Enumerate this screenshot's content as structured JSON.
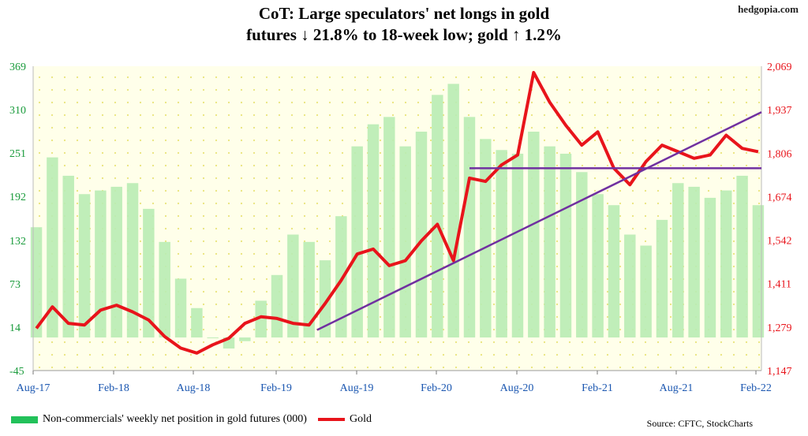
{
  "header": {
    "title_line1": "CoT: Large speculators' net longs in gold",
    "title_line2": "futures ↓ 21.8% to 18-week low; gold ↑ 1.2%",
    "site": "hedgopia.com"
  },
  "footer": {
    "source": "Source: CFTC, StockCharts"
  },
  "colors": {
    "bars": "#b9ecb4",
    "gold_line": "#e8141b",
    "trend_line": "#7030a0",
    "left_axis": "#1a9b3c",
    "right_axis": "#e8141b",
    "plot_bg": "#ffffea",
    "dots": "#e9e47a"
  },
  "chart_data": {
    "type": "bar+line",
    "title": "CoT: Large speculators' net longs in gold futures ↓ 21.8% to 18-week low; gold ↑ 1.2%",
    "x_tick_labels": [
      "Aug-17",
      "Feb-18",
      "Aug-18",
      "Feb-19",
      "Aug-19",
      "Feb-20",
      "Aug-20",
      "Feb-21",
      "Aug-21",
      "Feb-22"
    ],
    "x_range": [
      "Aug-17",
      "Feb-22"
    ],
    "left_axis": {
      "ticks": [
        -45,
        14,
        73,
        132,
        192,
        251,
        310,
        369
      ],
      "ylim": [
        -45,
        369
      ]
    },
    "right_axis": {
      "ticks": [
        "1,147",
        "1,279",
        "1,411",
        "1,542",
        "1,674",
        "1,806",
        "1,937",
        "2,069"
      ],
      "ylim": [
        1147,
        2069
      ]
    },
    "grid": "dotted",
    "series": [
      {
        "name": "Non-commercials' weekly net position in gold futures (000)",
        "type": "bar",
        "axis": "left",
        "x": [
          2017.6,
          2017.7,
          2017.8,
          2017.9,
          2018.0,
          2018.1,
          2018.2,
          2018.3,
          2018.4,
          2018.5,
          2018.6,
          2018.7,
          2018.8,
          2018.9,
          2019.0,
          2019.1,
          2019.2,
          2019.3,
          2019.4,
          2019.5,
          2019.6,
          2019.7,
          2019.8,
          2019.9,
          2020.0,
          2020.1,
          2020.2,
          2020.3,
          2020.4,
          2020.5,
          2020.6,
          2020.7,
          2020.8,
          2020.9,
          2021.0,
          2021.1,
          2021.2,
          2021.3,
          2021.4,
          2021.5,
          2021.6,
          2021.7,
          2021.8,
          2021.9,
          2022.0,
          2022.1
        ],
        "values": [
          150,
          245,
          220,
          195,
          200,
          205,
          210,
          175,
          130,
          80,
          40,
          0,
          -15,
          -5,
          50,
          85,
          140,
          130,
          105,
          165,
          260,
          290,
          300,
          260,
          280,
          330,
          345,
          300,
          270,
          255,
          250,
          280,
          260,
          250,
          225,
          195,
          180,
          140,
          125,
          160,
          210,
          205,
          190,
          200,
          220,
          180
        ]
      },
      {
        "name": "Gold",
        "type": "line",
        "axis": "right",
        "x": [
          2017.6,
          2017.7,
          2017.8,
          2017.9,
          2018.0,
          2018.1,
          2018.2,
          2018.3,
          2018.4,
          2018.5,
          2018.6,
          2018.7,
          2018.8,
          2018.9,
          2019.0,
          2019.1,
          2019.2,
          2019.3,
          2019.4,
          2019.5,
          2019.6,
          2019.7,
          2019.8,
          2019.9,
          2020.0,
          2020.1,
          2020.2,
          2020.3,
          2020.4,
          2020.5,
          2020.6,
          2020.7,
          2020.8,
          2020.9,
          2021.0,
          2021.1,
          2021.2,
          2021.3,
          2021.4,
          2021.5,
          2021.6,
          2021.7,
          2021.8,
          2021.9,
          2022.0,
          2022.1
        ],
        "values": [
          1275,
          1340,
          1290,
          1285,
          1330,
          1345,
          1325,
          1300,
          1250,
          1215,
          1200,
          1225,
          1245,
          1290,
          1310,
          1305,
          1290,
          1285,
          1350,
          1420,
          1500,
          1515,
          1465,
          1480,
          1540,
          1590,
          1480,
          1730,
          1720,
          1770,
          1800,
          2050,
          1960,
          1890,
          1830,
          1870,
          1760,
          1710,
          1780,
          1830,
          1810,
          1790,
          1800,
          1860,
          1820,
          1810
        ]
      }
    ],
    "horizontal_line": {
      "axis": "right",
      "value": 1760,
      "x_from": 2020.3
    },
    "trend_line": {
      "axis": "right",
      "from": [
        2019.35,
        1270
      ],
      "to": [
        2022.2,
        1930
      ]
    },
    "legend": "bottom-left"
  }
}
